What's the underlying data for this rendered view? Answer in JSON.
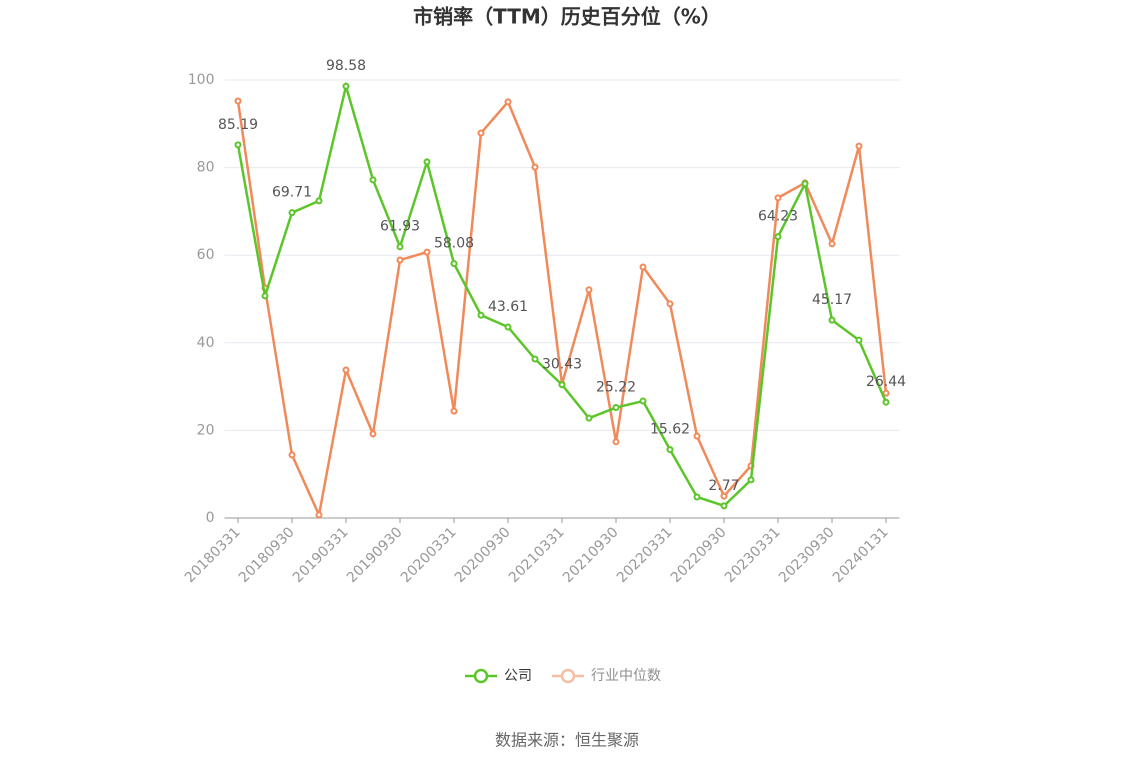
{
  "chart_data": {
    "type": "line",
    "title": "市销率（TTM）历史百分位（%）",
    "categories": [
      "20180331",
      null,
      "20180930",
      null,
      "20190331",
      null,
      "20190930",
      null,
      "20200331",
      null,
      "20200930",
      null,
      "20210331",
      null,
      "20210930",
      null,
      "20220331",
      null,
      "20220930",
      null,
      "20230331",
      null,
      "20230930",
      null,
      "20240131"
    ],
    "series": [
      {
        "name": "公司",
        "color": "#5cc52a",
        "values": [
          85.19,
          50.7,
          69.71,
          72.4,
          98.58,
          77.2,
          61.93,
          81.3,
          58.08,
          46.3,
          43.61,
          36.3,
          30.43,
          22.8,
          25.22,
          26.7,
          15.62,
          4.8,
          2.77,
          8.7,
          64.23,
          76.3,
          45.17,
          40.6,
          26.44
        ]
      },
      {
        "name": "行业中位数",
        "color": "#f08a5a",
        "values": [
          95.2,
          52.5,
          14.4,
          0.7,
          33.8,
          19.2,
          58.9,
          60.7,
          24.4,
          87.9,
          95.0,
          80.1,
          30.6,
          52.1,
          17.4,
          57.3,
          48.9,
          18.7,
          5.0,
          11.9,
          73.1,
          76.5,
          62.6,
          84.9,
          28.5
        ]
      }
    ],
    "ylim": [
      0,
      100
    ],
    "yticks": [
      0,
      20,
      40,
      60,
      80,
      100
    ],
    "grid": true,
    "source": "数据来源：恒生聚源"
  }
}
